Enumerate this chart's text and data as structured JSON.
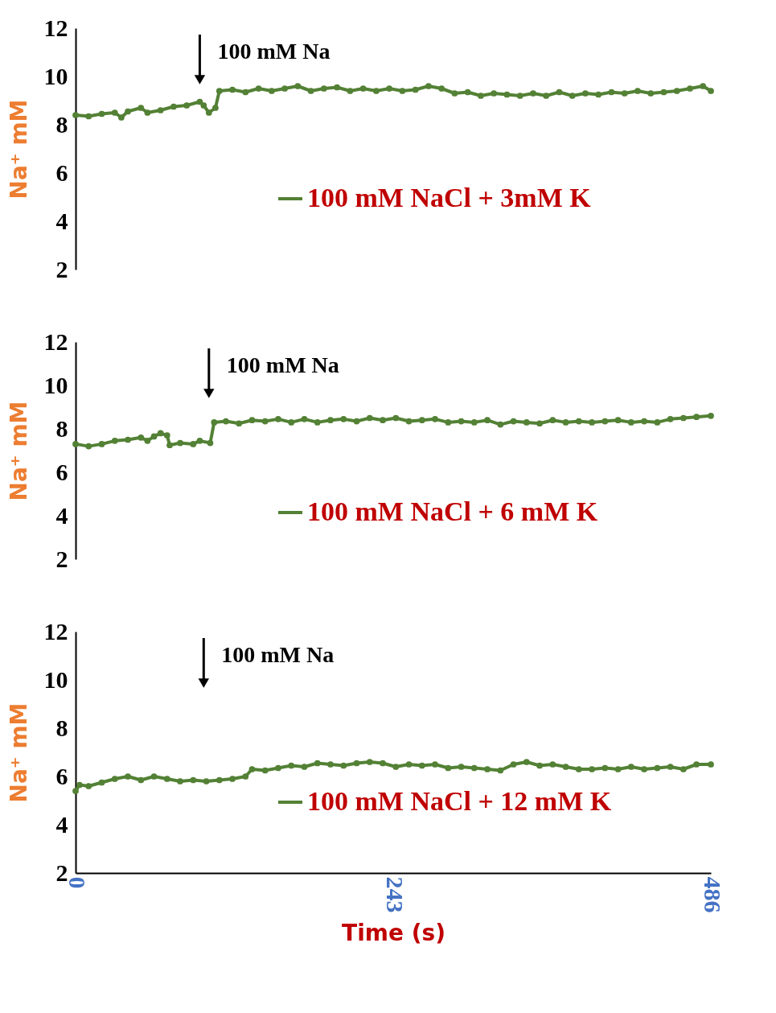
{
  "chart_data": [
    {
      "type": "line",
      "ylabel": "Na⁺ mM",
      "xlim": [
        0,
        486
      ],
      "ylim": [
        2,
        12
      ],
      "yticks": [
        2,
        4,
        6,
        8,
        10,
        12
      ],
      "tick_labels": "y",
      "grid": false,
      "legend": "right",
      "marker": "circle",
      "ref_lines": [
        {
          "axis": "x",
          "value": 95,
          "label": "100 mM Na"
        }
      ],
      "series": [
        {
          "name": "100 mM NaCl + 3mM K",
          "color": "#538135",
          "x": [
            0,
            10,
            20,
            30,
            35,
            40,
            50,
            55,
            65,
            75,
            85,
            95,
            98,
            102,
            107,
            110,
            120,
            130,
            140,
            150,
            160,
            170,
            180,
            190,
            200,
            210,
            220,
            230,
            240,
            250,
            260,
            270,
            280,
            290,
            300,
            310,
            320,
            330,
            340,
            350,
            360,
            370,
            380,
            390,
            400,
            410,
            420,
            430,
            440,
            450,
            460,
            470,
            480,
            486
          ],
          "values": [
            8.4,
            8.35,
            8.45,
            8.5,
            8.3,
            8.55,
            8.7,
            8.5,
            8.6,
            8.75,
            8.8,
            8.95,
            8.8,
            8.5,
            8.7,
            9.4,
            9.45,
            9.35,
            9.5,
            9.4,
            9.5,
            9.6,
            9.4,
            9.5,
            9.55,
            9.4,
            9.5,
            9.4,
            9.5,
            9.4,
            9.45,
            9.6,
            9.5,
            9.3,
            9.35,
            9.2,
            9.3,
            9.25,
            9.2,
            9.3,
            9.2,
            9.35,
            9.2,
            9.3,
            9.25,
            9.35,
            9.3,
            9.4,
            9.3,
            9.35,
            9.4,
            9.5,
            9.6,
            9.4
          ]
        }
      ]
    },
    {
      "type": "line",
      "ylabel": "Na⁺ mM",
      "xlim": [
        0,
        486
      ],
      "ylim": [
        2,
        12
      ],
      "yticks": [
        2,
        4,
        6,
        8,
        10,
        12
      ],
      "tick_labels": "y",
      "grid": false,
      "legend": "right",
      "marker": "circle",
      "ref_lines": [
        {
          "axis": "x",
          "value": 102,
          "label": "100 mM Na"
        }
      ],
      "series": [
        {
          "name": "100 mM NaCl + 6 mM K",
          "color": "#538135",
          "x": [
            0,
            10,
            20,
            30,
            40,
            50,
            55,
            60,
            65,
            70,
            72,
            80,
            90,
            95,
            103,
            106,
            115,
            125,
            135,
            145,
            155,
            165,
            175,
            185,
            195,
            205,
            215,
            225,
            235,
            245,
            255,
            265,
            275,
            285,
            295,
            305,
            315,
            325,
            335,
            345,
            355,
            365,
            375,
            385,
            395,
            405,
            415,
            425,
            435,
            445,
            455,
            465,
            475,
            486
          ],
          "values": [
            7.3,
            7.2,
            7.3,
            7.45,
            7.5,
            7.6,
            7.45,
            7.65,
            7.8,
            7.7,
            7.25,
            7.35,
            7.3,
            7.45,
            7.35,
            8.3,
            8.35,
            8.25,
            8.4,
            8.35,
            8.45,
            8.3,
            8.45,
            8.3,
            8.4,
            8.45,
            8.35,
            8.5,
            8.4,
            8.5,
            8.35,
            8.4,
            8.45,
            8.3,
            8.35,
            8.3,
            8.4,
            8.2,
            8.35,
            8.3,
            8.25,
            8.4,
            8.3,
            8.35,
            8.3,
            8.35,
            8.4,
            8.3,
            8.35,
            8.3,
            8.45,
            8.5,
            8.55,
            8.6
          ]
        }
      ]
    },
    {
      "type": "line",
      "ylabel": "Na⁺ mM",
      "xlabel": "Time (s)",
      "xlim": [
        0,
        486
      ],
      "xticks": [
        0,
        243,
        486
      ],
      "ylim": [
        2,
        12
      ],
      "yticks": [
        2,
        4,
        6,
        8,
        10,
        12
      ],
      "grid": false,
      "legend": "right",
      "marker": "circle",
      "ref_lines": [
        {
          "axis": "x",
          "value": 98,
          "label": "100 mM Na"
        }
      ],
      "series": [
        {
          "name": "100 mM NaCl + 12 mM K",
          "color": "#538135",
          "x": [
            0,
            3,
            10,
            20,
            30,
            40,
            50,
            60,
            70,
            80,
            90,
            100,
            110,
            120,
            130,
            135,
            145,
            155,
            165,
            175,
            185,
            195,
            205,
            215,
            225,
            235,
            245,
            255,
            265,
            275,
            285,
            295,
            305,
            315,
            325,
            335,
            345,
            355,
            365,
            375,
            385,
            395,
            405,
            415,
            425,
            435,
            445,
            455,
            465,
            475,
            486
          ],
          "values": [
            5.4,
            5.65,
            5.6,
            5.75,
            5.9,
            6.0,
            5.85,
            6.0,
            5.9,
            5.8,
            5.85,
            5.8,
            5.85,
            5.9,
            6.0,
            6.3,
            6.25,
            6.35,
            6.45,
            6.4,
            6.55,
            6.5,
            6.45,
            6.55,
            6.6,
            6.55,
            6.4,
            6.5,
            6.45,
            6.5,
            6.35,
            6.4,
            6.35,
            6.3,
            6.25,
            6.5,
            6.6,
            6.45,
            6.5,
            6.4,
            6.3,
            6.3,
            6.35,
            6.3,
            6.4,
            6.3,
            6.35,
            6.4,
            6.3,
            6.5,
            6.5
          ]
        }
      ]
    }
  ]
}
